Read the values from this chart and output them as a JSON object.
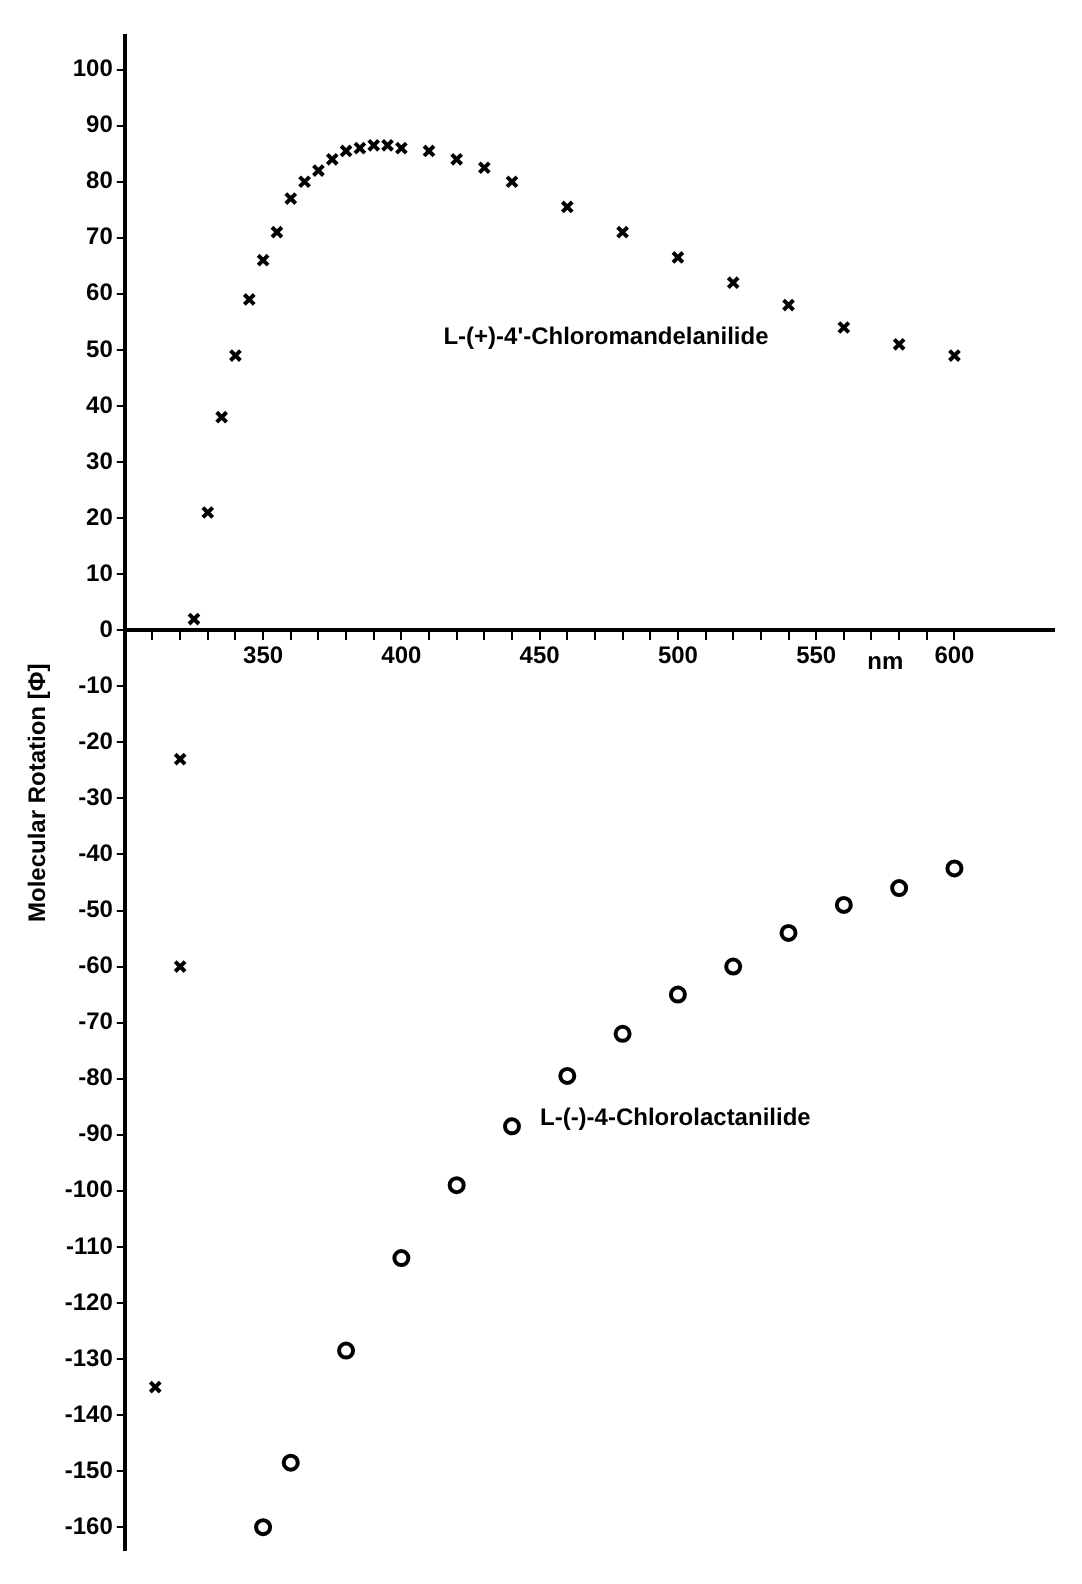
{
  "chart_data": {
    "type": "scatter",
    "ylabel": "Molecular Rotation [Φ]",
    "xlabel": "nm",
    "xlim": [
      300,
      636
    ],
    "ylim": [
      -164,
      106
    ],
    "xticks": [
      {
        "value": 310,
        "label": null
      },
      {
        "value": 320,
        "label": null
      },
      {
        "value": 330,
        "label": null
      },
      {
        "value": 340,
        "label": null
      },
      350,
      {
        "value": 360,
        "label": null
      },
      {
        "value": 370,
        "label": null
      },
      {
        "value": 380,
        "label": null
      },
      {
        "value": 390,
        "label": null
      },
      400,
      {
        "value": 410,
        "label": null
      },
      {
        "value": 420,
        "label": null
      },
      {
        "value": 430,
        "label": null
      },
      {
        "value": 440,
        "label": null
      },
      450,
      {
        "value": 460,
        "label": null
      },
      {
        "value": 470,
        "label": null
      },
      {
        "value": 480,
        "label": null
      },
      {
        "value": 490,
        "label": null
      },
      500,
      {
        "value": 510,
        "label": null
      },
      {
        "value": 520,
        "label": null
      },
      {
        "value": 530,
        "label": null
      },
      {
        "value": 540,
        "label": null
      },
      550,
      {
        "value": 560,
        "label": null
      },
      {
        "value": 570,
        "label": null
      },
      {
        "value": 580,
        "label": null
      },
      {
        "value": 590,
        "label": null
      },
      600
    ],
    "yticks": [
      -160,
      -150,
      -140,
      -130,
      -120,
      -110,
      -100,
      -90,
      -80,
      -70,
      -60,
      -50,
      -40,
      -30,
      -20,
      -10,
      0,
      10,
      20,
      30,
      40,
      50,
      60,
      70,
      80,
      90,
      100
    ],
    "grid": false,
    "series": [
      {
        "name": "L-(+)-4'-Chloromandelanilide",
        "color": "#000000",
        "marker": "cross",
        "x": [
          311,
          320,
          320,
          325,
          330,
          335,
          340,
          345,
          350,
          355,
          360,
          365,
          370,
          375,
          380,
          385,
          390,
          395,
          400,
          410,
          420,
          430,
          440,
          460,
          480,
          500,
          520,
          540,
          560,
          580,
          600
        ],
        "values": [
          -135,
          -60,
          -23,
          2,
          21,
          38,
          49,
          59,
          66,
          71,
          77,
          80,
          82,
          84,
          85.5,
          86,
          86.5,
          86.5,
          86,
          85.5,
          84,
          82.5,
          80,
          75.5,
          71,
          66.5,
          62,
          58,
          54,
          51,
          49
        ]
      },
      {
        "name": "L-(-)-4-Chlorolactanilide",
        "color": "#000000",
        "marker": "circle",
        "x": [
          350,
          360,
          380,
          400,
          420,
          440,
          460,
          480,
          500,
          520,
          540,
          560,
          580,
          600
        ],
        "values": [
          -160,
          -148.5,
          -128.5,
          -112,
          -99,
          -88.5,
          -79.5,
          -72,
          -65,
          -60,
          -54,
          -49,
          -46,
          -42.5
        ]
      }
    ]
  }
}
